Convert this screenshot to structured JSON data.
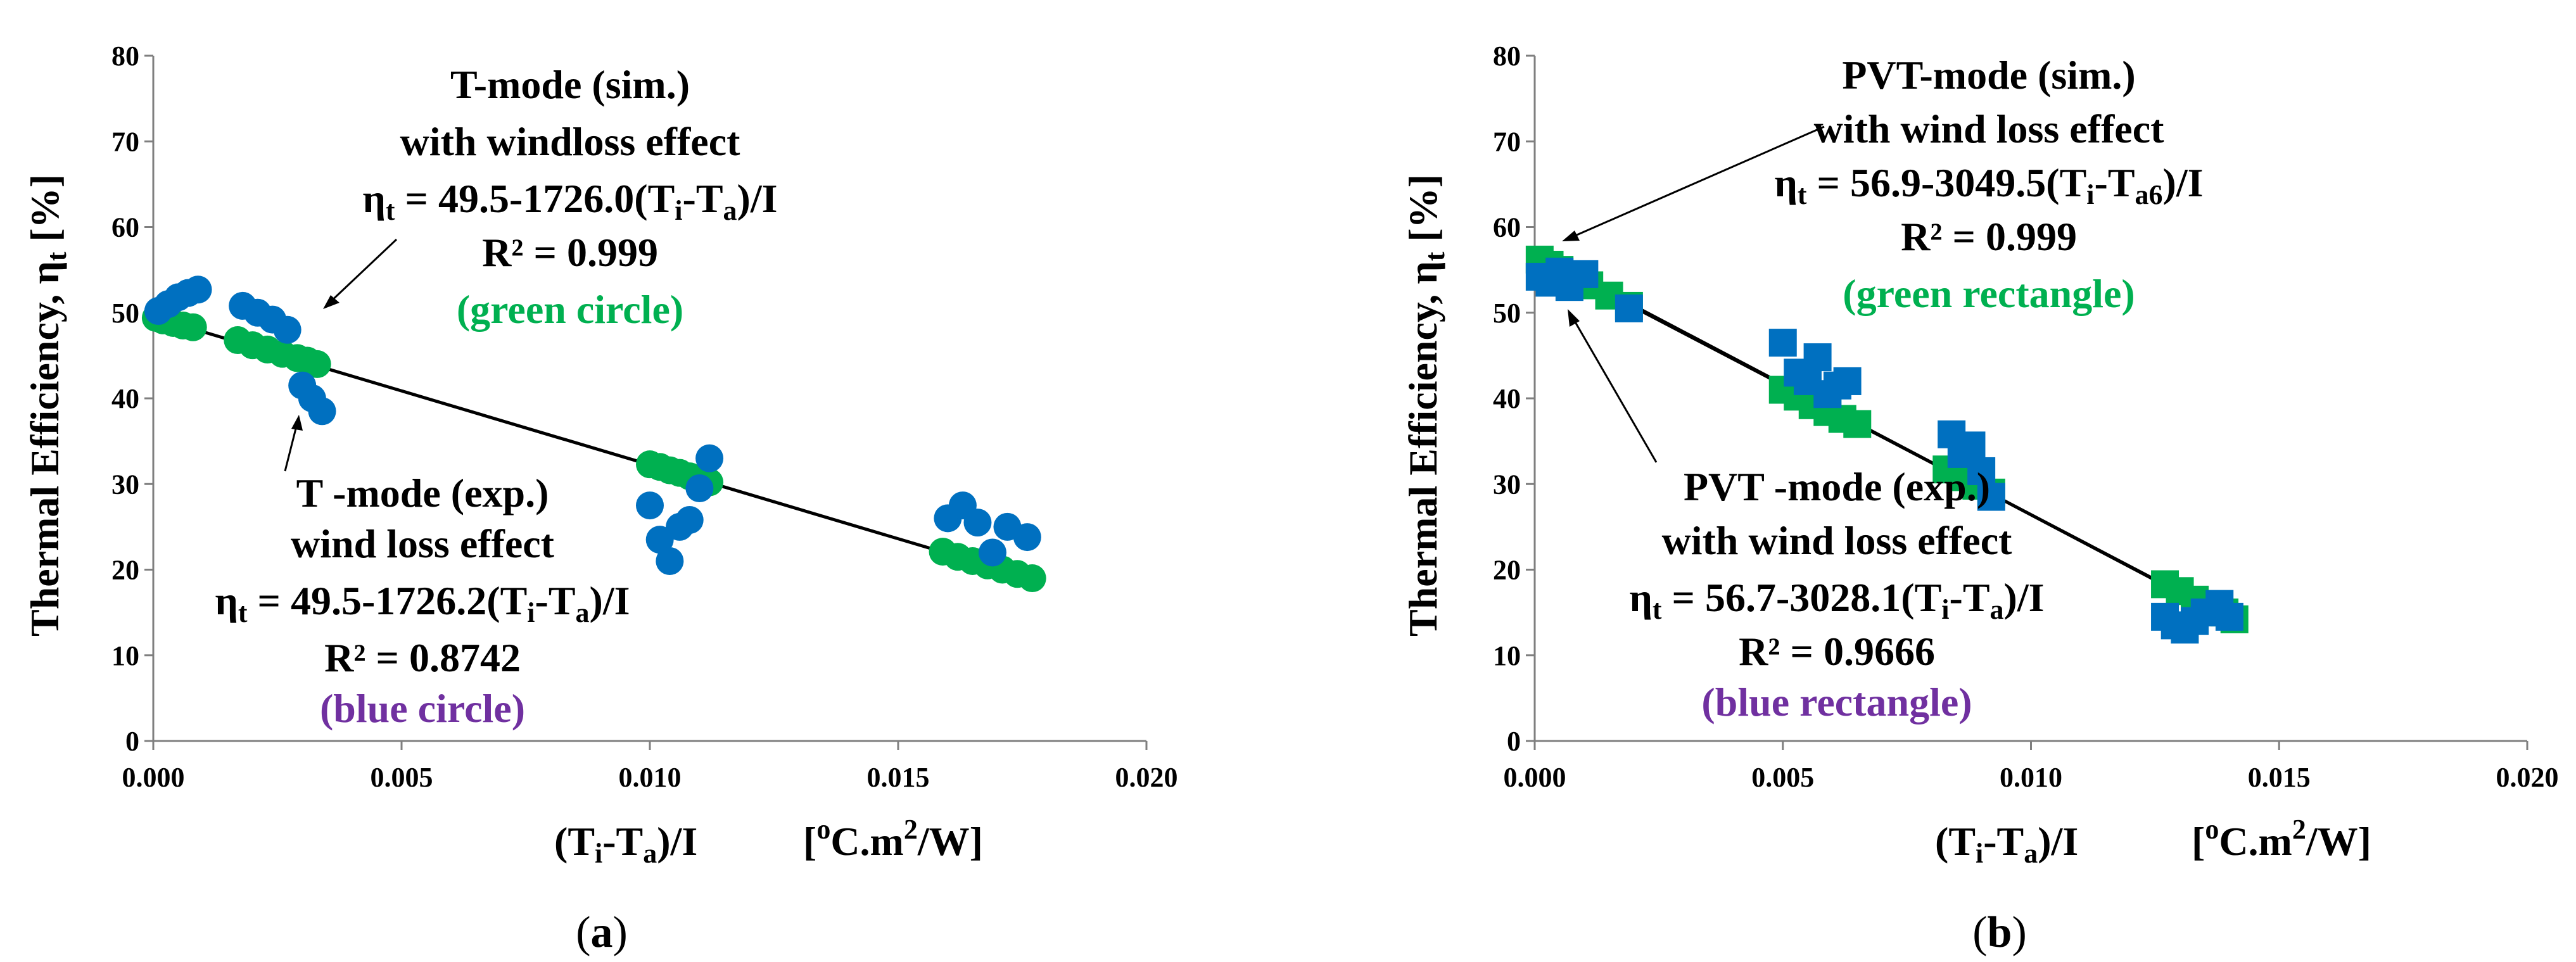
{
  "colors": {
    "green": "#00B050",
    "blue": "#0070C0",
    "purple": "#7030A0",
    "fit_line": "#000000",
    "axis": "#7f7f7f"
  },
  "chart_data": [
    {
      "type": "scatter",
      "panel_label": "a",
      "xlim": [
        0,
        0.02
      ],
      "ylim": [
        0,
        80
      ],
      "xticks": [
        0,
        0.005,
        0.01,
        0.015,
        0.02
      ],
      "xtick_labels": [
        "0.000",
        "0.005",
        "0.010",
        "0.015",
        "0.020"
      ],
      "yticks": [
        0,
        10,
        20,
        30,
        40,
        50,
        60,
        70,
        80
      ],
      "ytick_labels": [
        "0",
        "10",
        "20",
        "30",
        "40",
        "50",
        "60",
        "70",
        "80"
      ],
      "ylabel": "Thermal Efficiency, η",
      "ylabel_sub": "t",
      "ylabel_unit": "[%]",
      "xlabel": {
        "p1": "(T",
        "s1": "i",
        "p2": "-T",
        "s2": "a",
        "p3": ")/I",
        "u1": "[",
        "u2": "o",
        "u3": "C.m",
        "u4": "2",
        "u5": "/W]"
      },
      "marker": "circle",
      "series": [
        {
          "name": "T-mode (sim.) with windloss effect",
          "color": "green",
          "x": [
            5e-05,
            0.0002,
            0.0004,
            0.0006,
            0.0008,
            0.0017,
            0.002,
            0.0023,
            0.0026,
            0.0029,
            0.0031,
            0.0033,
            0.01,
            0.0102,
            0.0104,
            0.0106,
            0.0108,
            0.011,
            0.0112,
            0.0159,
            0.0162,
            0.0165,
            0.0168,
            0.0171,
            0.0174,
            0.0177
          ],
          "y": [
            49.4,
            49.1,
            48.8,
            48.5,
            48.3,
            46.8,
            46.2,
            45.7,
            45.2,
            44.7,
            44.4,
            44.0,
            32.3,
            32.0,
            31.6,
            31.3,
            30.9,
            30.6,
            30.2,
            22.1,
            21.5,
            21.0,
            20.5,
            20.0,
            19.5,
            19.0
          ]
        },
        {
          "name": "T-mode (exp.) wind loss effect",
          "color": "blue",
          "x": [
            0.0001,
            0.0003,
            0.0005,
            0.0007,
            0.0009,
            0.0018,
            0.0021,
            0.0024,
            0.0027,
            0.003,
            0.0032,
            0.0034,
            0.01,
            0.0102,
            0.0104,
            0.0106,
            0.0108,
            0.011,
            0.0112,
            0.016,
            0.0163,
            0.0166,
            0.0169,
            0.0172,
            0.0176
          ],
          "y": [
            50.2,
            51.0,
            51.8,
            52.3,
            52.7,
            50.8,
            50.0,
            49.2,
            48.0,
            41.5,
            40.0,
            38.5,
            27.5,
            23.5,
            21.0,
            25.0,
            25.8,
            29.5,
            33.0,
            26.0,
            27.5,
            25.5,
            22.0,
            25.0,
            23.8
          ]
        }
      ],
      "fit_lines": [
        {
          "x0": 0.0,
          "x1": 0.0177,
          "intercept": 49.5,
          "slope": -1726.0
        }
      ],
      "annotations": {
        "sim": {
          "l1": "T-mode (sim.)",
          "l2": "with windloss effect",
          "eq_pre": "η",
          "eq_sub": "t",
          "eq_mid": " = 49.5-1726.0(T",
          "eq_s1": "i",
          "eq_mid2": "-T",
          "eq_s2": "a",
          "eq_end": ")/I",
          "r2": "R² = 0.999",
          "tag": "(green circle)"
        },
        "exp": {
          "l1": "T -mode (exp.)",
          "l2": "wind loss effect",
          "eq_pre": "η",
          "eq_sub": "t",
          "eq_mid": " = 49.5-1726.2(T",
          "eq_s1": "i",
          "eq_mid2": "-T",
          "eq_s2": "a",
          "eq_end": ")/I",
          "r2": "R² = 0.8742",
          "tag": "(blue  circle)"
        }
      }
    },
    {
      "type": "scatter",
      "panel_label": "b",
      "xlim": [
        0,
        0.02
      ],
      "ylim": [
        0,
        80
      ],
      "xticks": [
        0,
        0.005,
        0.01,
        0.015,
        0.02
      ],
      "xtick_labels": [
        "0.000",
        "0.005",
        "0.010",
        "0.015",
        "0.020"
      ],
      "yticks": [
        0,
        10,
        20,
        30,
        40,
        50,
        60,
        70,
        80
      ],
      "ytick_labels": [
        "0",
        "10",
        "20",
        "30",
        "40",
        "50",
        "60",
        "70",
        "80"
      ],
      "ylabel": "Thermal Efficiency, η",
      "ylabel_sub": "t",
      "ylabel_unit": "[%]",
      "xlabel": {
        "p1": "(T",
        "s1": "i",
        "p2": "-T",
        "s2": "a",
        "p3": ")/I",
        "u1": "[",
        "u2": "o",
        "u3": "C.m",
        "u4": "2",
        "u5": "/W]"
      },
      "marker": "square",
      "series": [
        {
          "name": "PVT-mode (sim.) with wind loss effect",
          "color": "green",
          "x": [
            0.0001,
            0.0003,
            0.0005,
            0.0008,
            0.0011,
            0.0015,
            0.0019,
            0.005,
            0.0053,
            0.0056,
            0.0059,
            0.0062,
            0.0065,
            0.0083,
            0.0086,
            0.0089,
            0.0092,
            0.0127,
            0.013,
            0.0133,
            0.0136,
            0.0139,
            0.0141
          ],
          "y": [
            56.2,
            55.6,
            55.0,
            54.1,
            53.2,
            52.0,
            50.8,
            41.0,
            40.2,
            39.2,
            38.4,
            37.6,
            37.0,
            31.7,
            30.8,
            29.8,
            29.0,
            18.3,
            17.5,
            16.5,
            15.8,
            15.0,
            14.2
          ]
        },
        {
          "name": "PVT-mode (exp.) with wind loss effect",
          "color": "blue",
          "x": [
            0.0001,
            0.0003,
            0.0005,
            0.0007,
            0.001,
            0.0019,
            0.005,
            0.0053,
            0.0055,
            0.0057,
            0.0059,
            0.0061,
            0.0063,
            0.0084,
            0.0086,
            0.0088,
            0.009,
            0.0092,
            0.0127,
            0.0129,
            0.0131,
            0.0133,
            0.0135,
            0.0138,
            0.014
          ],
          "y": [
            54.2,
            53.5,
            54.8,
            53.0,
            54.5,
            50.5,
            46.5,
            43.0,
            42.0,
            44.8,
            40.5,
            41.5,
            42.0,
            35.8,
            33.5,
            34.5,
            31.5,
            28.5,
            14.5,
            13.5,
            13.0,
            14.0,
            15.0,
            16.0,
            14.5
          ]
        }
      ],
      "fit_lines": [
        {
          "x0": 0.0,
          "x1": 0.0141,
          "intercept": 56.9,
          "slope": -3049.5
        },
        {
          "x0": 0.0,
          "x1": 0.0141,
          "intercept": 56.7,
          "slope": -3028.1
        }
      ],
      "annotations": {
        "sim": {
          "l1": "PVT-mode (sim.)",
          "l2": "with wind loss effect",
          "eq_pre": "η",
          "eq_sub": "t",
          "eq_mid": " = 56.9-3049.5(T",
          "eq_s1": "i",
          "eq_mid2": "-T",
          "eq_s2": "a6",
          "eq_end": ")/I",
          "r2": "R² = 0.999",
          "tag": "(green rectangle)"
        },
        "exp": {
          "l1": "PVT -mode (exp.)",
          "l2": "with wind loss effect",
          "eq_pre": "η",
          "eq_sub": "t",
          "eq_mid": " = 56.7-3028.1(T",
          "eq_s1": "i",
          "eq_mid2": "-T",
          "eq_s2": "a",
          "eq_end": ")/I",
          "r2": "R² = 0.9666",
          "tag": "(blue  rectangle)"
        }
      }
    }
  ]
}
